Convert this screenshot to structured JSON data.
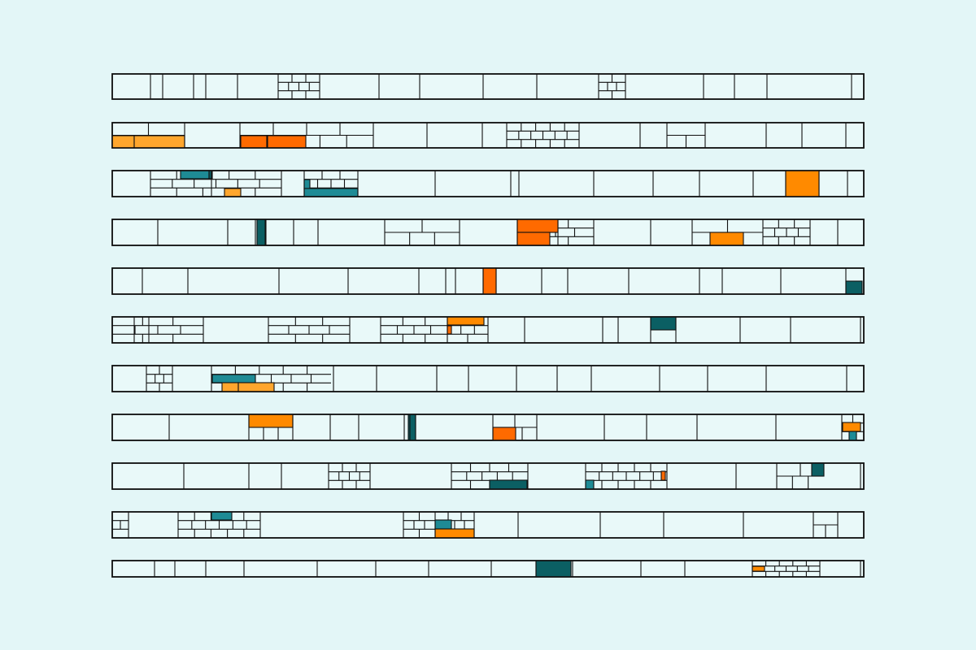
{
  "artwork": {
    "background_color": "#e3f6f7",
    "stroke_color": "#111111",
    "fill_color": "#e9f9f9",
    "accent_colors": {
      "orange": "#ff6a00",
      "orange_light": "#ffa62d",
      "orange_mid": "#ff8a00",
      "teal": "#1e8b95",
      "teal_dark": "#0b5f63"
    },
    "strip_count": 11
  }
}
